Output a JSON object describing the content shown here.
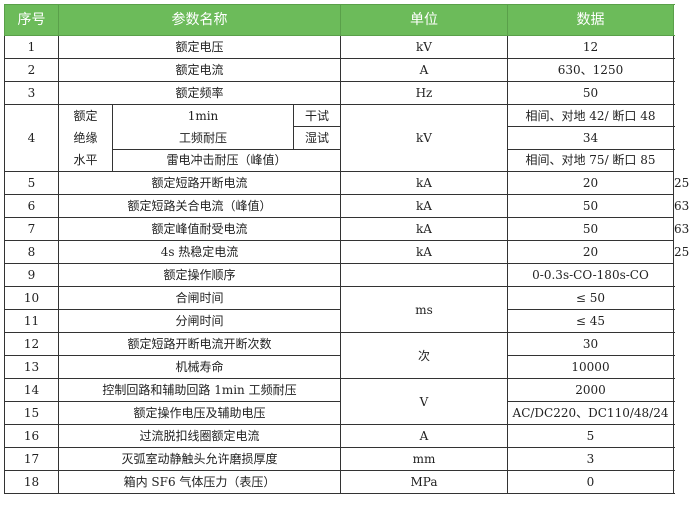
{
  "header": {
    "seq": "序号",
    "param": "参数名称",
    "unit": "单位",
    "data": "数据"
  },
  "colors": {
    "header_bg": "#6cbb5a",
    "header_text": "#ffffff"
  },
  "rows": [
    {
      "seq": "1",
      "param": "额定电压",
      "unit": "kV",
      "data": "12"
    },
    {
      "seq": "2",
      "param": "额定电流",
      "unit": "A",
      "data": "630、1250"
    },
    {
      "seq": "3",
      "param": "额定频率",
      "unit": "Hz",
      "data": "50"
    },
    {
      "seq": "4",
      "param": "额定绝缘水平",
      "sub1": "1min",
      "sub1b": "工频耐压",
      "dry": "干试",
      "wet": "湿试",
      "lightning": "雷电冲击耐压（峰值）",
      "unit": "kV",
      "data_dry": "相间、对地 42/ 断口 48",
      "data_wet": "34",
      "data_lightning": "相间、对地 75/ 断口 85"
    },
    {
      "seq": "5",
      "param": "额定短路开断电流",
      "unit": "kA",
      "data_a": "20",
      "data_b": "25"
    },
    {
      "seq": "6",
      "param": "额定短路关合电流（峰值）",
      "unit": "kA",
      "data_a": "50",
      "data_b": "63"
    },
    {
      "seq": "7",
      "param": "额定峰值耐受电流",
      "unit": "kA",
      "data_a": "50",
      "data_b": "63"
    },
    {
      "seq": "8",
      "param": "4s 热稳定电流",
      "unit": "kA",
      "data_a": "20",
      "data_b": "25"
    },
    {
      "seq": "9",
      "param": "额定操作顺序",
      "unit": "",
      "data": "0-0.3s-CO-180s-CO"
    },
    {
      "seq": "10",
      "param": "合闸时间",
      "unit": "ms",
      "data": "≤ 50"
    },
    {
      "seq": "11",
      "param": "分闸时间",
      "data": "≤ 45"
    },
    {
      "seq": "12",
      "param": "额定短路开断电流开断次数",
      "unit": "次",
      "data": "30"
    },
    {
      "seq": "13",
      "param": "机械寿命",
      "data": "10000"
    },
    {
      "seq": "14",
      "param": "控制回路和辅助回路 1min 工频耐压",
      "unit": "V",
      "data": "2000"
    },
    {
      "seq": "15",
      "param": "额定操作电压及辅助电压",
      "data": "AC/DC220、DC110/48/24"
    },
    {
      "seq": "16",
      "param": "过流脱扣线圈额定电流",
      "unit": "A",
      "data": "5"
    },
    {
      "seq": "17",
      "param": "灭弧室动静触头允许磨损厚度",
      "unit": "mm",
      "data": "3"
    },
    {
      "seq": "18",
      "param": "箱内 SF6 气体压力（表压）",
      "unit": "MPa",
      "data": "0"
    }
  ]
}
